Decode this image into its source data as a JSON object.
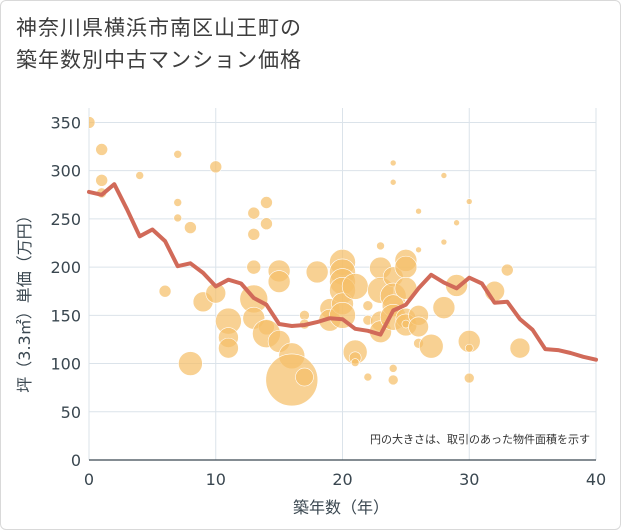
{
  "title_line1": "神奈川県横浜市南区山王町の",
  "title_line2": "築年数別中古マンション価格",
  "chart_data": {
    "type": "scatter",
    "xlabel": "築年数（年）",
    "ylabel": "坪（3.3㎡）単価（万円）",
    "xlim": [
      0,
      40
    ],
    "ylim": [
      0,
      365
    ],
    "x_ticks": [
      0,
      10,
      20,
      30,
      40
    ],
    "y_ticks": [
      0,
      50,
      100,
      150,
      200,
      250,
      300,
      350
    ],
    "note": "円の大きさは、取引のあった物件面積を示す",
    "colors": {
      "bubble": "#f5bf6a",
      "line": "#d16a59",
      "grid": "#dbe3ea"
    },
    "bubbles": [
      {
        "x": 0,
        "y": 350,
        "s": 6
      },
      {
        "x": 1,
        "y": 322,
        "s": 6
      },
      {
        "x": 1,
        "y": 290,
        "s": 6
      },
      {
        "x": 1,
        "y": 277,
        "s": 5
      },
      {
        "x": 4,
        "y": 295,
        "s": 4
      },
      {
        "x": 7,
        "y": 317,
        "s": 4
      },
      {
        "x": 7,
        "y": 267,
        "s": 4
      },
      {
        "x": 7,
        "y": 251,
        "s": 4
      },
      {
        "x": 8,
        "y": 241,
        "s": 6
      },
      {
        "x": 6,
        "y": 175,
        "s": 6
      },
      {
        "x": 10,
        "y": 304,
        "s": 6
      },
      {
        "x": 9,
        "y": 164,
        "s": 10
      },
      {
        "x": 10,
        "y": 173,
        "s": 10
      },
      {
        "x": 8,
        "y": 100,
        "s": 12
      },
      {
        "x": 11,
        "y": 144,
        "s": 13
      },
      {
        "x": 11,
        "y": 127,
        "s": 10
      },
      {
        "x": 11,
        "y": 116,
        "s": 10
      },
      {
        "x": 13,
        "y": 256,
        "s": 6
      },
      {
        "x": 14,
        "y": 267,
        "s": 6
      },
      {
        "x": 14,
        "y": 245,
        "s": 6
      },
      {
        "x": 13,
        "y": 234,
        "s": 6
      },
      {
        "x": 13,
        "y": 200,
        "s": 7
      },
      {
        "x": 13,
        "y": 167,
        "s": 14
      },
      {
        "x": 13,
        "y": 147,
        "s": 11
      },
      {
        "x": 14,
        "y": 138,
        "s": 8
      },
      {
        "x": 14,
        "y": 131,
        "s": 14
      },
      {
        "x": 15,
        "y": 123,
        "s": 11
      },
      {
        "x": 15,
        "y": 196,
        "s": 11
      },
      {
        "x": 15,
        "y": 185,
        "s": 11
      },
      {
        "x": 16,
        "y": 108,
        "s": 13
      },
      {
        "x": 16,
        "y": 83,
        "s": 26
      },
      {
        "x": 17,
        "y": 86,
        "s": 9
      },
      {
        "x": 17,
        "y": 150,
        "s": 5
      },
      {
        "x": 17,
        "y": 141,
        "s": 5
      },
      {
        "x": 18,
        "y": 195,
        "s": 11
      },
      {
        "x": 19,
        "y": 157,
        "s": 10
      },
      {
        "x": 19,
        "y": 145,
        "s": 11
      },
      {
        "x": 20,
        "y": 205,
        "s": 13
      },
      {
        "x": 20,
        "y": 195,
        "s": 13
      },
      {
        "x": 20,
        "y": 185,
        "s": 13
      },
      {
        "x": 20,
        "y": 176,
        "s": 13
      },
      {
        "x": 20,
        "y": 162,
        "s": 11
      },
      {
        "x": 20,
        "y": 150,
        "s": 13
      },
      {
        "x": 21,
        "y": 180,
        "s": 13
      },
      {
        "x": 21,
        "y": 112,
        "s": 12
      },
      {
        "x": 21,
        "y": 106,
        "s": 6
      },
      {
        "x": 21,
        "y": 101,
        "s": 4
      },
      {
        "x": 22,
        "y": 160,
        "s": 5
      },
      {
        "x": 22,
        "y": 145,
        "s": 5
      },
      {
        "x": 22,
        "y": 86,
        "s": 4
      },
      {
        "x": 23,
        "y": 222,
        "s": 4
      },
      {
        "x": 23,
        "y": 199,
        "s": 11
      },
      {
        "x": 23,
        "y": 176,
        "s": 13
      },
      {
        "x": 23,
        "y": 144,
        "s": 10
      },
      {
        "x": 23,
        "y": 133,
        "s": 11
      },
      {
        "x": 24,
        "y": 308,
        "s": 3
      },
      {
        "x": 24,
        "y": 288,
        "s": 3
      },
      {
        "x": 24,
        "y": 190,
        "s": 10
      },
      {
        "x": 24,
        "y": 170,
        "s": 13
      },
      {
        "x": 24,
        "y": 160,
        "s": 11
      },
      {
        "x": 24,
        "y": 148,
        "s": 13
      },
      {
        "x": 24,
        "y": 95,
        "s": 4
      },
      {
        "x": 24,
        "y": 83,
        "s": 5
      },
      {
        "x": 25,
        "y": 207,
        "s": 11
      },
      {
        "x": 25,
        "y": 200,
        "s": 11
      },
      {
        "x": 25,
        "y": 178,
        "s": 11
      },
      {
        "x": 25,
        "y": 147,
        "s": 10
      },
      {
        "x": 25,
        "y": 140,
        "s": 11
      },
      {
        "x": 25,
        "y": 141,
        "s": 4
      },
      {
        "x": 26,
        "y": 258,
        "s": 3
      },
      {
        "x": 26,
        "y": 218,
        "s": 3
      },
      {
        "x": 26,
        "y": 150,
        "s": 10
      },
      {
        "x": 26,
        "y": 138,
        "s": 10
      },
      {
        "x": 26,
        "y": 121,
        "s": 5
      },
      {
        "x": 27,
        "y": 118,
        "s": 12
      },
      {
        "x": 28,
        "y": 295,
        "s": 3
      },
      {
        "x": 28,
        "y": 226,
        "s": 3
      },
      {
        "x": 28,
        "y": 158,
        "s": 11
      },
      {
        "x": 29,
        "y": 246,
        "s": 3
      },
      {
        "x": 29,
        "y": 181,
        "s": 11
      },
      {
        "x": 30,
        "y": 268,
        "s": 3
      },
      {
        "x": 30,
        "y": 123,
        "s": 11
      },
      {
        "x": 30,
        "y": 116,
        "s": 4
      },
      {
        "x": 30,
        "y": 85,
        "s": 5
      },
      {
        "x": 32,
        "y": 175,
        "s": 10
      },
      {
        "x": 33,
        "y": 197,
        "s": 6
      },
      {
        "x": 34,
        "y": 116,
        "s": 10
      }
    ],
    "line": {
      "x": [
        0,
        1,
        2,
        3,
        4,
        5,
        6,
        7,
        8,
        9,
        10,
        11,
        12,
        13,
        14,
        15,
        16,
        17,
        18,
        19,
        20,
        21,
        22,
        23,
        24,
        25,
        26,
        27,
        28,
        29,
        30,
        31,
        32,
        33,
        34,
        35,
        36,
        37,
        38,
        39,
        40
      ],
      "y": [
        278,
        275,
        286,
        260,
        232,
        239,
        227,
        201,
        204,
        194,
        180,
        187,
        183,
        168,
        161,
        141,
        139,
        140,
        143,
        147,
        146,
        136,
        134,
        130,
        155,
        161,
        178,
        192,
        184,
        178,
        189,
        183,
        163,
        164,
        146,
        135,
        115,
        114,
        111,
        107,
        104
      ]
    }
  }
}
